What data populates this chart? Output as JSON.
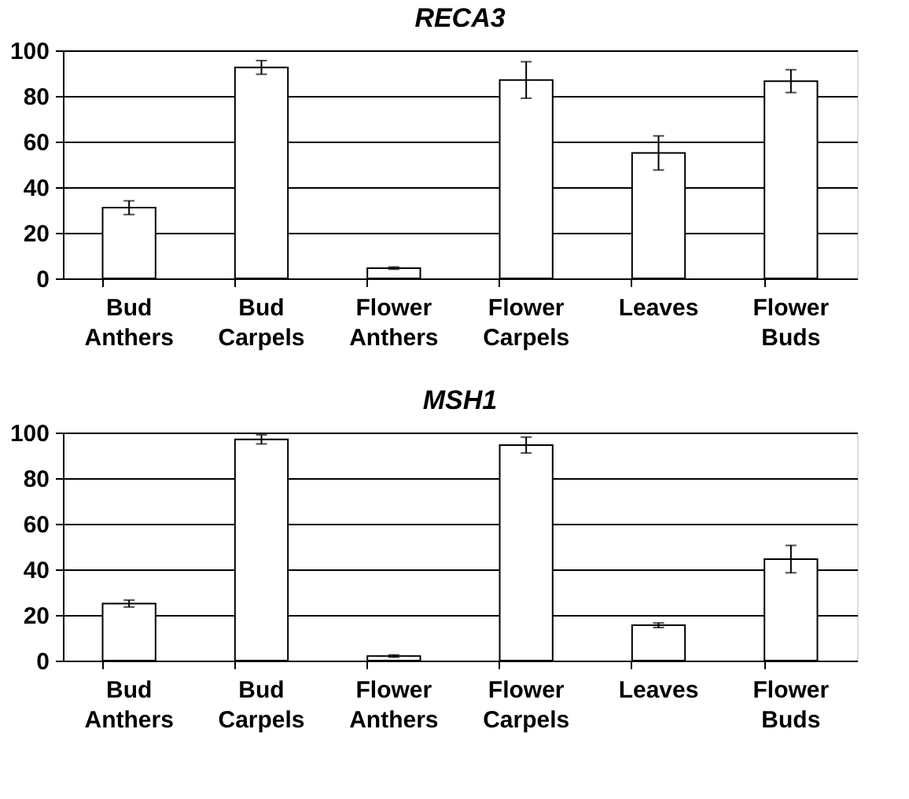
{
  "chart_data": [
    {
      "type": "bar",
      "title": "RECA3",
      "categories": [
        "Bud Anthers",
        "Bud Carpels",
        "Flower Anthers",
        "Flower Carpels",
        "Leaves",
        "Flower Buds"
      ],
      "values": [
        31,
        92.5,
        4.5,
        87,
        55,
        86.5
      ],
      "errors": [
        3,
        3,
        0.5,
        8,
        7.5,
        5
      ],
      "color": "#ffffff",
      "ylim": [
        0,
        100
      ],
      "yticks": [
        0,
        20,
        40,
        60,
        80,
        100
      ],
      "grid": "y"
    },
    {
      "type": "bar",
      "title": "MSH1",
      "categories": [
        "Bud Anthers",
        "Bud Carpels",
        "Flower Anthers",
        "Flower Carpels",
        "Leaves",
        "Flower Buds"
      ],
      "values": [
        25,
        97,
        2,
        94.5,
        15.5,
        44.5
      ],
      "errors": [
        1.5,
        2,
        0.5,
        3.5,
        1,
        6
      ],
      "color": "#ffffff",
      "ylim": [
        0,
        100
      ],
      "yticks": [
        0,
        20,
        40,
        60,
        80,
        100
      ],
      "grid": "y"
    }
  ]
}
